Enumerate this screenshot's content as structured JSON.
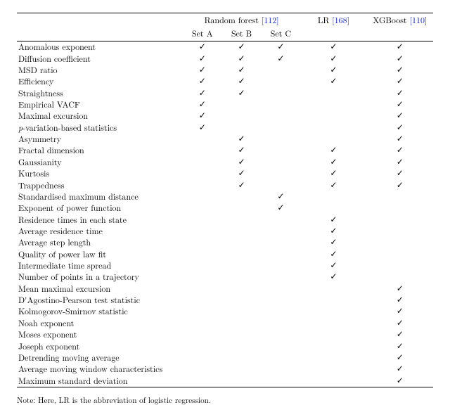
{
  "columns": {
    "rf_label": "Random forest",
    "rf_ref": "[112]",
    "set_a": "Set A",
    "set_b": "Set B",
    "set_c": "Set C",
    "lr_label": "LR",
    "lr_ref": "[168]",
    "xgb_label": "XGBoost",
    "xgb_ref": "[110]"
  },
  "check": "✓",
  "rows": [
    {
      "label": "Anomalous exponent",
      "a": 1,
      "b": 1,
      "c": 1,
      "lr": 1,
      "x": 1
    },
    {
      "label": "Diffusion coefficient",
      "a": 1,
      "b": 1,
      "c": 1,
      "lr": 1,
      "x": 1
    },
    {
      "label": "MSD ratio",
      "a": 1,
      "b": 1,
      "c": 0,
      "lr": 1,
      "x": 1
    },
    {
      "label": "Efficiency",
      "a": 1,
      "b": 1,
      "c": 0,
      "lr": 1,
      "x": 1
    },
    {
      "label": "Straightness",
      "a": 1,
      "b": 1,
      "c": 0,
      "lr": 0,
      "x": 1
    },
    {
      "label": "Empirical VACF",
      "a": 1,
      "b": 0,
      "c": 0,
      "lr": 0,
      "x": 1
    },
    {
      "label": "Maximal excursion",
      "a": 1,
      "b": 0,
      "c": 0,
      "lr": 0,
      "x": 1
    },
    {
      "label_html": "<span class='ital'>p</span>-variation-based statistics",
      "a": 1,
      "b": 0,
      "c": 0,
      "lr": 0,
      "x": 1
    },
    {
      "label": "Asymmetry",
      "a": 0,
      "b": 1,
      "c": 0,
      "lr": 0,
      "x": 1
    },
    {
      "label": "Fractal dimension",
      "a": 0,
      "b": 1,
      "c": 0,
      "lr": 1,
      "x": 1
    },
    {
      "label": "Gaussianity",
      "a": 0,
      "b": 1,
      "c": 0,
      "lr": 1,
      "x": 1
    },
    {
      "label": "Kurtosis",
      "a": 0,
      "b": 1,
      "c": 0,
      "lr": 1,
      "x": 1
    },
    {
      "label": "Trappedness",
      "a": 0,
      "b": 1,
      "c": 0,
      "lr": 1,
      "x": 1
    },
    {
      "label": "Standardised maximum distance",
      "a": 0,
      "b": 0,
      "c": 1,
      "lr": 0,
      "x": 0
    },
    {
      "label": "Exponent of power function",
      "a": 0,
      "b": 0,
      "c": 1,
      "lr": 0,
      "x": 0
    },
    {
      "label": "Residence times in each state",
      "a": 0,
      "b": 0,
      "c": 0,
      "lr": 1,
      "x": 0
    },
    {
      "label": "Average residence time",
      "a": 0,
      "b": 0,
      "c": 0,
      "lr": 1,
      "x": 0
    },
    {
      "label": "Average step length",
      "a": 0,
      "b": 0,
      "c": 0,
      "lr": 1,
      "x": 0
    },
    {
      "label": "Quality of power law fit",
      "a": 0,
      "b": 0,
      "c": 0,
      "lr": 1,
      "x": 0
    },
    {
      "label": "Intermediate time spread",
      "a": 0,
      "b": 0,
      "c": 0,
      "lr": 1,
      "x": 0
    },
    {
      "label": "Number of points in a trajectory",
      "a": 0,
      "b": 0,
      "c": 0,
      "lr": 1,
      "x": 0
    },
    {
      "label": "Mean maximal excursion",
      "a": 0,
      "b": 0,
      "c": 0,
      "lr": 0,
      "x": 1
    },
    {
      "label": "D'Agostino-Pearson test statistic",
      "a": 0,
      "b": 0,
      "c": 0,
      "lr": 0,
      "x": 1
    },
    {
      "label": "Kolmogorov-Smirnov statistic",
      "a": 0,
      "b": 0,
      "c": 0,
      "lr": 0,
      "x": 1
    },
    {
      "label": "Noah exponent",
      "a": 0,
      "b": 0,
      "c": 0,
      "lr": 0,
      "x": 1
    },
    {
      "label": "Moses exponent",
      "a": 0,
      "b": 0,
      "c": 0,
      "lr": 0,
      "x": 1
    },
    {
      "label": "Joseph exponent",
      "a": 0,
      "b": 0,
      "c": 0,
      "lr": 0,
      "x": 1
    },
    {
      "label": "Detrending moving average",
      "a": 0,
      "b": 0,
      "c": 0,
      "lr": 0,
      "x": 1
    },
    {
      "label": "Average moving window characteristics",
      "a": 0,
      "b": 0,
      "c": 0,
      "lr": 0,
      "x": 1
    },
    {
      "label": "Maximum standard deviation",
      "a": 0,
      "b": 0,
      "c": 0,
      "lr": 0,
      "x": 1
    }
  ],
  "footnote": "Note: Here, LR is the abbreviation of logistic regression."
}
